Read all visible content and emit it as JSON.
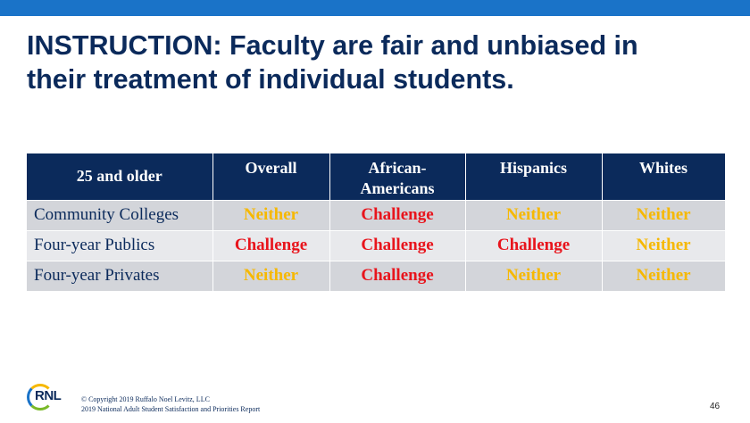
{
  "slide": {
    "title_line1": "INSTRUCTION: Faculty are fair and unbiased in",
    "title_line2": "their treatment of individual students.",
    "page_number": "46"
  },
  "table": {
    "corner_label": "25 and older",
    "columns": [
      "Overall",
      "African-Americans",
      "Hispanics",
      "Whites"
    ],
    "column_line1": [
      "Overall",
      "African-",
      "Hispanics",
      "Whites"
    ],
    "column_line2": [
      "",
      "Americans",
      "",
      ""
    ],
    "rows": [
      {
        "label": "Community Colleges",
        "values": [
          "Neither",
          "Challenge",
          "Neither",
          "Neither"
        ]
      },
      {
        "label": "Four-year Publics",
        "values": [
          "Challenge",
          "Challenge",
          "Challenge",
          "Neither"
        ]
      },
      {
        "label": "Four-year Privates",
        "values": [
          "Neither",
          "Challenge",
          "Neither",
          "Neither"
        ]
      }
    ]
  },
  "colors": {
    "header_bg": "#0b2a5b",
    "neither": "#f6b800",
    "challenge": "#e8141c",
    "top_bar": "#1a73c8"
  },
  "footer": {
    "logo_text": "RNL",
    "copyright": "© Copyright 2019 Ruffalo Noel Levitz, LLC",
    "report": "2019 National Adult Student Satisfaction and Priorities Report"
  }
}
